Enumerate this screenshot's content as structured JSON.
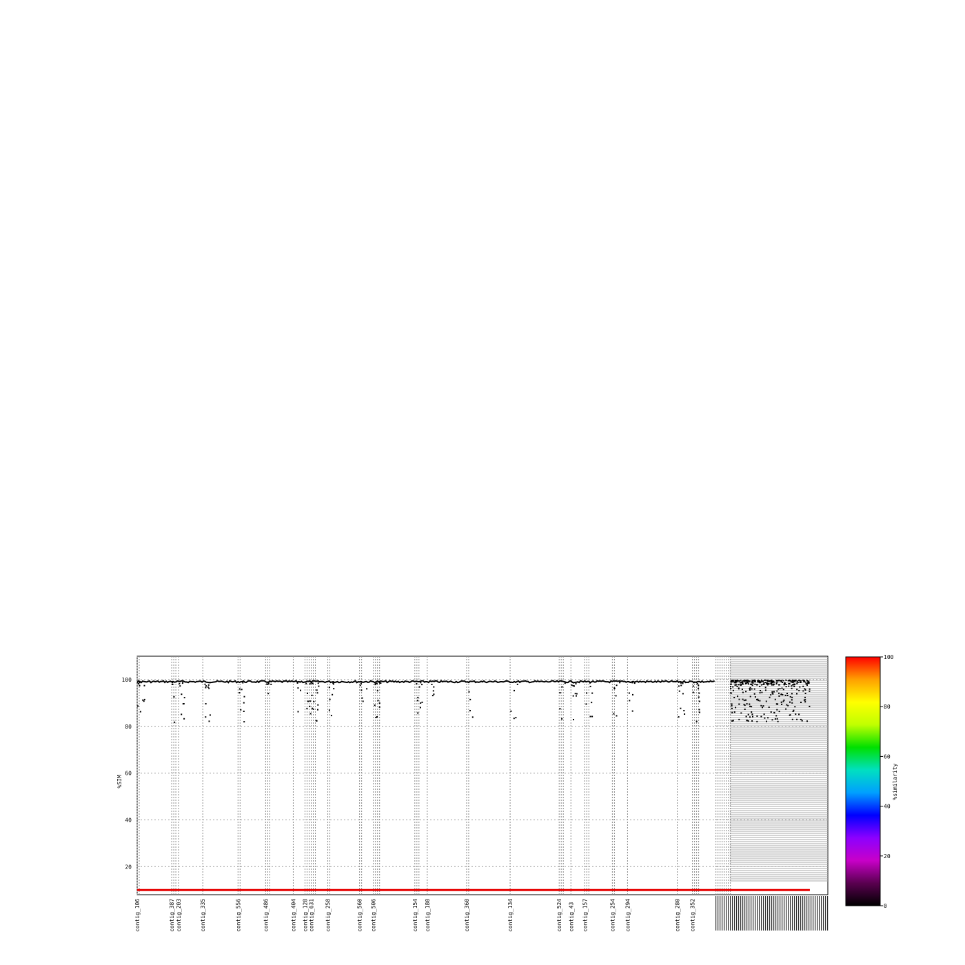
{
  "chart_data": {
    "type": "scatter",
    "ylabel": "%SIM",
    "ylim": [
      8,
      110
    ],
    "yticks": [
      20,
      40,
      60,
      80,
      100
    ],
    "grid": true,
    "reference_line_y": 10,
    "reference_line_color": "#e60000",
    "point_color": "#000000",
    "colorbar": {
      "label": "%similarity",
      "range": [
        0,
        100
      ],
      "ticks": [
        0,
        20,
        40,
        60,
        80,
        100
      ],
      "gradient": [
        "#000000",
        "#5a0050",
        "#c800c8",
        "#8c00ff",
        "#0000ff",
        "#00a0ff",
        "#00e0c0",
        "#00e000",
        "#c0ff00",
        "#ffff00",
        "#ffa000",
        "#ff0000"
      ]
    },
    "visible_x_labels": [
      "contig_106",
      "contig_387",
      "contig_203",
      "contig_335",
      "contig_556",
      "contig_486",
      "contig_404",
      "contig_128",
      "contig_631",
      "contig_258",
      "contig_560",
      "contig_506",
      "contig_154",
      "contig_180",
      "contig_360",
      "contig_134",
      "contig_524",
      "contig_43",
      "contig_157",
      "contig_254",
      "contig_294",
      "contig_280",
      "contig_352"
    ],
    "main_contig_segments": [
      {
        "label": "contig_106",
        "start": 0.0,
        "end": 0.05
      },
      {
        "label": "contig_387",
        "start": 0.05,
        "end": 0.06
      },
      {
        "label": "contig_203",
        "start": 0.06,
        "end": 0.095
      },
      {
        "label": "contig_335",
        "start": 0.095,
        "end": 0.146
      },
      {
        "label": "contig_556",
        "start": 0.146,
        "end": 0.186
      },
      {
        "label": "contig_486",
        "start": 0.186,
        "end": 0.226
      },
      {
        "label": "contig_404",
        "start": 0.226,
        "end": 0.243
      },
      {
        "label": "contig_128",
        "start": 0.243,
        "end": 0.252
      },
      {
        "label": "contig_631",
        "start": 0.252,
        "end": 0.276
      },
      {
        "label": "contig_258",
        "start": 0.276,
        "end": 0.322
      },
      {
        "label": "contig_560",
        "start": 0.322,
        "end": 0.342
      },
      {
        "label": "contig_506",
        "start": 0.342,
        "end": 0.402
      },
      {
        "label": "contig_154",
        "start": 0.402,
        "end": 0.42
      },
      {
        "label": "contig_180",
        "start": 0.42,
        "end": 0.477
      },
      {
        "label": "contig_360",
        "start": 0.477,
        "end": 0.54
      },
      {
        "label": "contig_134",
        "start": 0.54,
        "end": 0.611
      },
      {
        "label": "contig_524",
        "start": 0.611,
        "end": 0.628
      },
      {
        "label": "contig_43",
        "start": 0.628,
        "end": 0.648
      },
      {
        "label": "contig_157",
        "start": 0.648,
        "end": 0.688
      },
      {
        "label": "contig_254",
        "start": 0.688,
        "end": 0.71
      },
      {
        "label": "contig_294",
        "start": 0.71,
        "end": 0.782
      },
      {
        "label": "contig_280",
        "start": 0.782,
        "end": 0.804
      },
      {
        "label": "contig_352",
        "start": 0.804,
        "end": 0.838
      }
    ],
    "small_contig_region": {
      "start": 0.838,
      "end": 1.0
    }
  }
}
